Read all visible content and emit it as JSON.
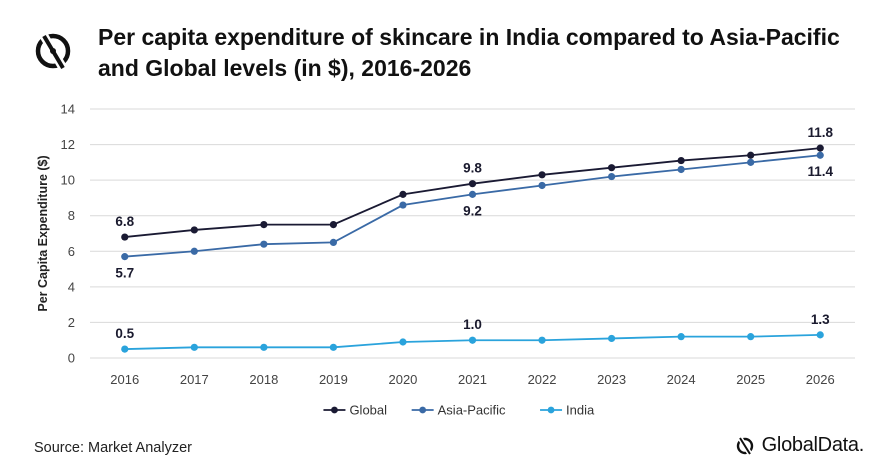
{
  "header": {
    "title": "Per capita expenditure of skincare in India compared to Asia-Pacific and Global levels (in $), 2016-2026",
    "logo_icon": "globaldata-mark-icon"
  },
  "footer": {
    "source": "Source: Market Analyzer",
    "brand": "GlobalData."
  },
  "chart_data": {
    "type": "line",
    "x": [
      "2016",
      "2017",
      "2018",
      "2019",
      "2020",
      "2021",
      "2022",
      "2023",
      "2024",
      "2025",
      "2026"
    ],
    "ylabel": "Per Capita Expenditure ($)",
    "xlabel": "",
    "ylim": [
      0,
      14
    ],
    "yticks": [
      0,
      2,
      4,
      6,
      8,
      10,
      12,
      14
    ],
    "grid": true,
    "legend": "bottom",
    "series": [
      {
        "name": "Global",
        "color": "#1a1a33",
        "values": [
          6.8,
          7.2,
          7.5,
          7.5,
          9.2,
          9.8,
          10.3,
          10.7,
          11.1,
          11.4,
          11.8
        ],
        "labels": [
          {
            "i": 0,
            "text": "6.8",
            "pos": "above"
          },
          {
            "i": 5,
            "text": "9.8",
            "pos": "above"
          },
          {
            "i": 10,
            "text": "11.8",
            "pos": "above"
          }
        ]
      },
      {
        "name": "Asia-Pacific",
        "color": "#3a6aa6",
        "values": [
          5.7,
          6.0,
          6.4,
          6.5,
          8.6,
          9.2,
          9.7,
          10.2,
          10.6,
          11.0,
          11.4
        ],
        "labels": [
          {
            "i": 0,
            "text": "5.7",
            "pos": "below"
          },
          {
            "i": 5,
            "text": "9.2",
            "pos": "below"
          },
          {
            "i": 10,
            "text": "11.4",
            "pos": "below"
          }
        ]
      },
      {
        "name": "India",
        "color": "#2aa3dc",
        "values": [
          0.5,
          0.6,
          0.6,
          0.6,
          0.9,
          1.0,
          1.0,
          1.1,
          1.2,
          1.2,
          1.3
        ],
        "labels": [
          {
            "i": 0,
            "text": "0.5",
            "pos": "above"
          },
          {
            "i": 5,
            "text": "1.0",
            "pos": "above"
          },
          {
            "i": 10,
            "text": "1.3",
            "pos": "above"
          }
        ]
      }
    ]
  }
}
